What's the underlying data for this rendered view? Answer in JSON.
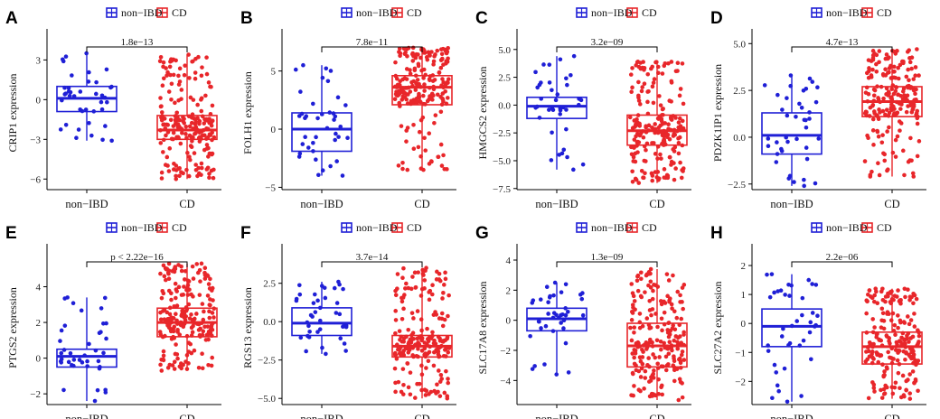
{
  "colors": {
    "non_ibd": "#1f1fd6",
    "cd": "#e8262a"
  },
  "chart_data": [
    {
      "panel": "A",
      "type": "box",
      "ylabel": "CRIP1 expression",
      "categories": [
        "non−IBD",
        "CD"
      ],
      "legend": [
        "non−IBD",
        "CD"
      ],
      "pvalue": "1.8e−13",
      "ylim": [
        -6.8,
        4.8
      ],
      "yticks": [
        -6,
        -3,
        0,
        3
      ],
      "ytick_labels": [
        "−6",
        "−3",
        "0",
        "3"
      ],
      "groups": [
        {
          "name": "non−IBD",
          "n": 40,
          "min": -3.1,
          "q1": -0.9,
          "median": 0.1,
          "q3": 1.0,
          "max": 3.5
        },
        {
          "name": "CD",
          "n": 210,
          "min": -6.0,
          "q1": -3.0,
          "median": -2.3,
          "q3": -1.2,
          "max": 3.4
        }
      ]
    },
    {
      "panel": "B",
      "type": "box",
      "ylabel": "FOLH1 expression",
      "categories": [
        "non−IBD",
        "CD"
      ],
      "legend": [
        "non−IBD",
        "CD"
      ],
      "pvalue": "7.8e−11",
      "ylim": [
        -5.2,
        8.0
      ],
      "yticks": [
        -5,
        0,
        5
      ],
      "ytick_labels": [
        "−5",
        "0",
        "5"
      ],
      "groups": [
        {
          "name": "non−IBD",
          "n": 40,
          "min": -4.0,
          "q1": -1.9,
          "median": 0.0,
          "q3": 1.4,
          "max": 5.5
        },
        {
          "name": "CD",
          "n": 210,
          "min": -3.5,
          "q1": 2.1,
          "median": 3.6,
          "q3": 4.6,
          "max": 7.0
        }
      ]
    },
    {
      "panel": "C",
      "type": "box",
      "ylabel": "HMGCS2 expression",
      "categories": [
        "non−IBD",
        "CD"
      ],
      "legend": [
        "non−IBD",
        "CD"
      ],
      "pvalue": "3.2e−09",
      "ylim": [
        -7.6,
        6.2
      ],
      "yticks": [
        -7.5,
        -5,
        -2.5,
        0,
        2.5,
        5
      ],
      "ytick_labels": [
        "−7.5",
        "−5.0",
        "−2.5",
        "0.0",
        "2.5",
        "5.0"
      ],
      "groups": [
        {
          "name": "non−IBD",
          "n": 40,
          "min": -5.8,
          "q1": -1.2,
          "median": -0.1,
          "q3": 0.7,
          "max": 4.4
        },
        {
          "name": "CD",
          "n": 210,
          "min": -7.0,
          "q1": -3.6,
          "median": -2.3,
          "q3": -0.9,
          "max": 3.9
        }
      ]
    },
    {
      "panel": "D",
      "type": "box",
      "ylabel": "PDZK1IP1 expression",
      "categories": [
        "non−IBD",
        "CD"
      ],
      "legend": [
        "non−IBD",
        "CD"
      ],
      "pvalue": "4.7e−13",
      "ylim": [
        -2.8,
        5.4
      ],
      "yticks": [
        -2.5,
        0,
        2.5,
        5
      ],
      "ytick_labels": [
        "−2.5",
        "0.0",
        "2.5",
        "5.0"
      ],
      "groups": [
        {
          "name": "non−IBD",
          "n": 40,
          "min": -2.6,
          "q1": -0.9,
          "median": 0.1,
          "q3": 1.3,
          "max": 3.3
        },
        {
          "name": "CD",
          "n": 210,
          "min": -2.1,
          "q1": 1.1,
          "median": 1.9,
          "q3": 2.7,
          "max": 4.7
        }
      ]
    },
    {
      "panel": "E",
      "type": "box",
      "ylabel": "PTGS2 expression",
      "categories": [
        "non−IBD",
        "CD"
      ],
      "legend": [
        "non−IBD",
        "CD"
      ],
      "pvalue": "p < 2.22e−16",
      "ylim": [
        -2.6,
        6.0
      ],
      "yticks": [
        -2,
        0,
        2,
        4
      ],
      "ytick_labels": [
        "−2",
        "0",
        "2",
        "4"
      ],
      "groups": [
        {
          "name": "non−IBD",
          "n": 40,
          "min": -2.4,
          "q1": -0.5,
          "median": 0.1,
          "q3": 0.5,
          "max": 3.4
        },
        {
          "name": "CD",
          "n": 210,
          "min": -0.7,
          "q1": 1.2,
          "median": 2.0,
          "q3": 2.8,
          "max": 5.3
        }
      ]
    },
    {
      "panel": "F",
      "type": "box",
      "ylabel": "RGS13 expression",
      "categories": [
        "non−IBD",
        "CD"
      ],
      "legend": [
        "non−IBD",
        "CD"
      ],
      "pvalue": "3.7e−14",
      "ylim": [
        -5.4,
        4.6
      ],
      "yticks": [
        -5,
        -2.5,
        0,
        2.5
      ],
      "ytick_labels": [
        "−5.0",
        "−2.5",
        "0.0",
        "2.5"
      ],
      "groups": [
        {
          "name": "non−IBD",
          "n": 40,
          "min": -2.1,
          "q1": -0.9,
          "median": -0.1,
          "q3": 0.9,
          "max": 2.6
        },
        {
          "name": "CD",
          "n": 210,
          "min": -5.0,
          "q1": -2.3,
          "median": -1.6,
          "q3": -0.9,
          "max": 3.5
        }
      ]
    },
    {
      "panel": "G",
      "type": "box",
      "ylabel": "SLC17A8 expression",
      "categories": [
        "non−IBD",
        "CD"
      ],
      "legend": [
        "non−IBD",
        "CD"
      ],
      "pvalue": "1.3e−09",
      "ylim": [
        -5.6,
        4.6
      ],
      "yticks": [
        -4,
        -2,
        0,
        2,
        4
      ],
      "ytick_labels": [
        "−4",
        "−2",
        "0",
        "2",
        "4"
      ],
      "groups": [
        {
          "name": "non−IBD",
          "n": 40,
          "min": -3.6,
          "q1": -0.7,
          "median": 0.1,
          "q3": 0.8,
          "max": 2.5
        },
        {
          "name": "CD",
          "n": 210,
          "min": -5.3,
          "q1": -3.1,
          "median": -1.7,
          "q3": -0.2,
          "max": 3.4
        }
      ]
    },
    {
      "panel": "H",
      "type": "box",
      "ylabel": "SLC27A2 expression",
      "categories": [
        "non−IBD",
        "CD"
      ],
      "legend": [
        "non−IBD",
        "CD"
      ],
      "pvalue": "2.2e−06",
      "ylim": [
        -2.8,
        2.5
      ],
      "yticks": [
        -2,
        -1,
        0,
        1,
        2
      ],
      "ytick_labels": [
        "−2",
        "−1",
        "0",
        "1",
        "2"
      ],
      "groups": [
        {
          "name": "non−IBD",
          "n": 40,
          "min": -2.7,
          "q1": -0.8,
          "median": -0.1,
          "q3": 0.5,
          "max": 1.7
        },
        {
          "name": "CD",
          "n": 210,
          "min": -2.6,
          "q1": -1.4,
          "median": -0.8,
          "q3": -0.3,
          "max": 1.2
        }
      ]
    }
  ]
}
